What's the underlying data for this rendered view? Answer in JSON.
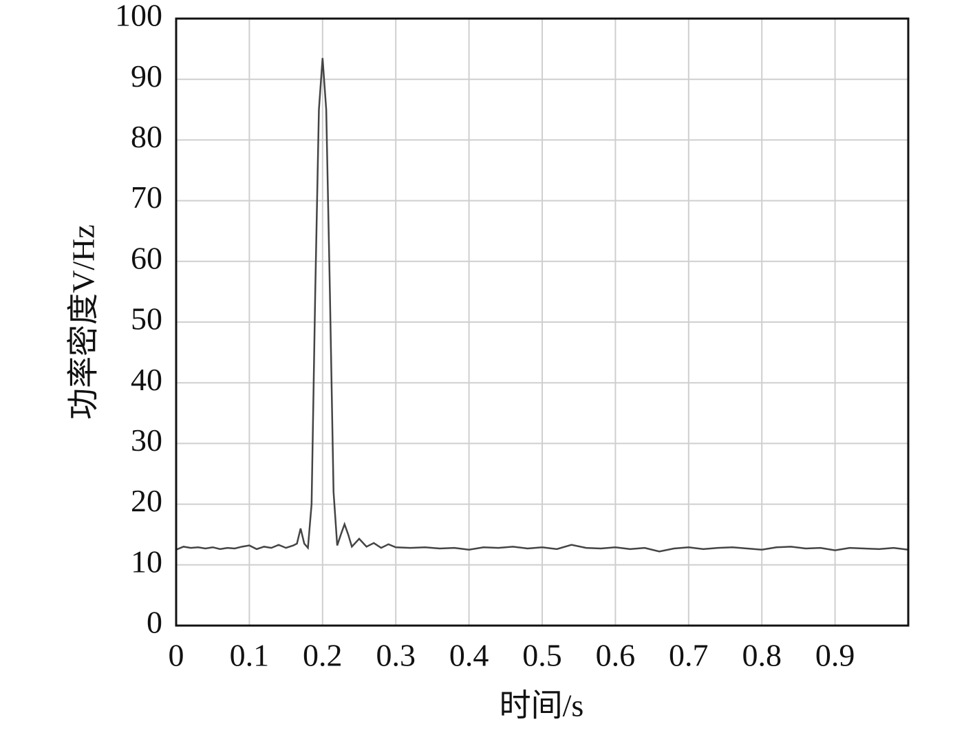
{
  "chart_data": {
    "type": "line",
    "x_label": "时间/s",
    "y_label": "功率密度V/Hz",
    "x": [
      0,
      0.01,
      0.02,
      0.03,
      0.04,
      0.05,
      0.06,
      0.07,
      0.08,
      0.09,
      0.1,
      0.11,
      0.12,
      0.13,
      0.14,
      0.15,
      0.16,
      0.165,
      0.17,
      0.175,
      0.18,
      0.185,
      0.19,
      0.195,
      0.2,
      0.205,
      0.21,
      0.215,
      0.22,
      0.225,
      0.23,
      0.235,
      0.24,
      0.25,
      0.26,
      0.27,
      0.28,
      0.29,
      0.3,
      0.32,
      0.34,
      0.36,
      0.38,
      0.4,
      0.42,
      0.44,
      0.46,
      0.48,
      0.5,
      0.52,
      0.54,
      0.56,
      0.58,
      0.6,
      0.62,
      0.64,
      0.66,
      0.68,
      0.7,
      0.72,
      0.74,
      0.76,
      0.78,
      0.8,
      0.82,
      0.84,
      0.86,
      0.88,
      0.9,
      0.92,
      0.94,
      0.96,
      0.98,
      1
    ],
    "series": [
      {
        "color": "#444444",
        "values": [
          12.5,
          13.0,
          12.8,
          12.9,
          12.7,
          12.9,
          12.6,
          12.8,
          12.7,
          13.0,
          13.2,
          12.6,
          13.0,
          12.8,
          13.3,
          12.8,
          13.2,
          13.5,
          16.0,
          13.5,
          12.8,
          20,
          55,
          85,
          93.5,
          85,
          55,
          22,
          13.2,
          15,
          16.7,
          15,
          13.0,
          14.3,
          13.0,
          13.6,
          12.8,
          13.4,
          12.9,
          12.8,
          12.9,
          12.7,
          12.8,
          12.5,
          12.9,
          12.8,
          13.0,
          12.7,
          12.9,
          12.6,
          13.3,
          12.8,
          12.7,
          12.9,
          12.6,
          12.8,
          12.2,
          12.7,
          12.9,
          12.6,
          12.8,
          12.9,
          12.7,
          12.5,
          12.9,
          13.0,
          12.7,
          12.8,
          12.4,
          12.8,
          12.7,
          12.6,
          12.8,
          12.5
        ]
      }
    ],
    "xlim": [
      0,
      1
    ],
    "xticks": [
      0,
      0.1,
      0.2,
      0.3,
      0.4,
      0.5,
      0.6,
      0.7,
      0.8,
      0.9
    ],
    "ylim": [
      0,
      100
    ],
    "yticks": [
      0,
      10,
      20,
      30,
      40,
      50,
      60,
      70,
      80,
      90,
      100
    ],
    "grid": true
  }
}
